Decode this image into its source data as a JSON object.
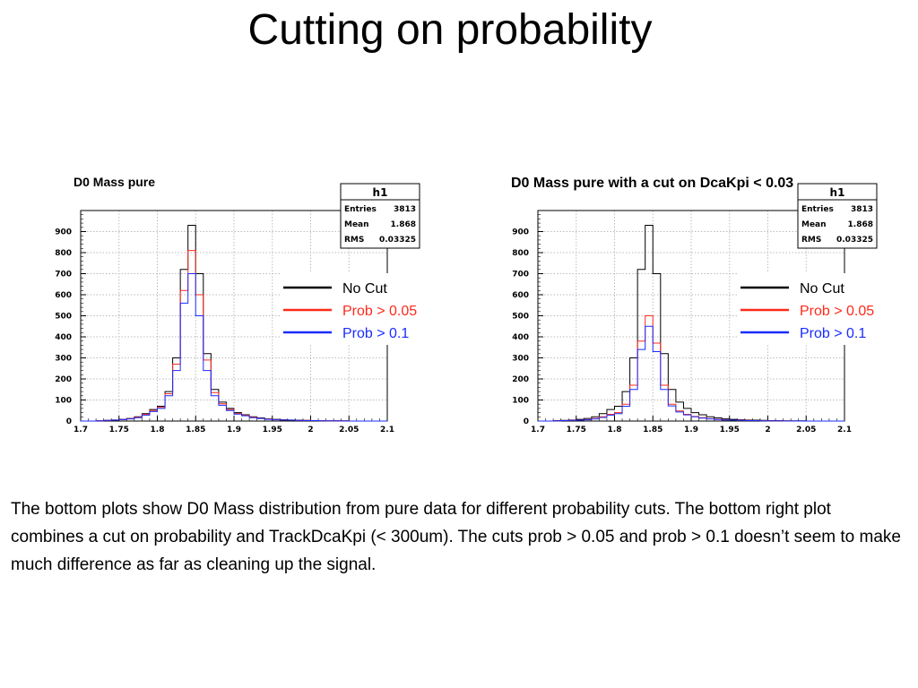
{
  "slide": {
    "title": "Cutting on probability",
    "caption": "The bottom plots show D0 Mass distribution from pure data for different probability cuts. The bottom right plot combines a cut on probability and TrackDcaKpi (< 300um). The cuts prob > 0.05 and prob > 0.1 doesn’t seem to make much difference as far as cleaning up the signal."
  },
  "colors": {
    "no_cut": "#000000",
    "prob_005": "#ff2a1a",
    "prob_01": "#1a2cff",
    "grid": "#bbbbbb"
  },
  "chart_data": [
    {
      "type": "histogram",
      "title": "D0 Mass pure",
      "xlim": [
        1.7,
        2.1
      ],
      "ylim": [
        0,
        1000
      ],
      "x_ticks": [
        "1.7",
        "1.75",
        "1.8",
        "1.85",
        "1.9",
        "1.95",
        "2",
        "2.05",
        "2.1"
      ],
      "y_ticks": [
        "0",
        "100",
        "200",
        "300",
        "400",
        "500",
        "600",
        "700",
        "800",
        "900"
      ],
      "bin_edges": [
        1.7,
        1.71,
        1.72,
        1.73,
        1.74,
        1.75,
        1.76,
        1.77,
        1.78,
        1.79,
        1.8,
        1.81,
        1.82,
        1.83,
        1.84,
        1.85,
        1.86,
        1.87,
        1.88,
        1.89,
        1.9,
        1.91,
        1.92,
        1.93,
        1.94,
        1.95,
        1.96,
        1.97,
        1.98,
        1.99,
        2.0,
        2.01,
        2.02,
        2.03,
        2.04,
        2.05,
        2.06,
        2.07,
        2.08,
        2.09,
        2.1
      ],
      "stats": {
        "name": "h1",
        "rows": [
          {
            "label": "Entries",
            "value": "3813"
          },
          {
            "label": "Mean",
            "value": "1.868"
          },
          {
            "label": "RMS",
            "value": "0.03325"
          }
        ]
      },
      "legend": [
        "No Cut",
        "Prob > 0.05",
        "Prob > 0.1"
      ],
      "series": [
        {
          "name": "No Cut",
          "values": [
            0,
            0,
            2,
            3,
            5,
            8,
            12,
            20,
            35,
            55,
            70,
            140,
            300,
            720,
            930,
            700,
            320,
            150,
            90,
            60,
            40,
            30,
            20,
            15,
            10,
            8,
            6,
            5,
            4,
            3,
            2,
            2,
            1,
            1,
            1,
            0,
            0,
            0,
            0,
            0
          ]
        },
        {
          "name": "Prob > 0.05",
          "values": [
            0,
            0,
            2,
            3,
            5,
            7,
            11,
            18,
            32,
            50,
            65,
            130,
            270,
            620,
            810,
            600,
            290,
            135,
            82,
            55,
            36,
            27,
            18,
            13,
            9,
            7,
            5,
            4,
            3,
            3,
            2,
            2,
            1,
            1,
            1,
            0,
            0,
            0,
            0,
            0
          ]
        },
        {
          "name": "Prob > 0.1",
          "values": [
            0,
            0,
            1,
            3,
            4,
            7,
            10,
            16,
            28,
            45,
            60,
            120,
            240,
            560,
            700,
            500,
            240,
            120,
            75,
            50,
            33,
            25,
            16,
            12,
            8,
            6,
            5,
            4,
            3,
            2,
            2,
            1,
            1,
            1,
            0,
            0,
            0,
            0,
            0,
            0
          ]
        }
      ]
    },
    {
      "type": "histogram",
      "title": "D0 Mass pure with a cut on DcaKpi < 0.03",
      "xlim": [
        1.7,
        2.1
      ],
      "ylim": [
        0,
        1000
      ],
      "x_ticks": [
        "1.7",
        "1.75",
        "1.8",
        "1.85",
        "1.9",
        "1.95",
        "2",
        "2.05",
        "2.1"
      ],
      "y_ticks": [
        "0",
        "100",
        "200",
        "300",
        "400",
        "500",
        "600",
        "700",
        "800",
        "900"
      ],
      "bin_edges": [
        1.7,
        1.71,
        1.72,
        1.73,
        1.74,
        1.75,
        1.76,
        1.77,
        1.78,
        1.79,
        1.8,
        1.81,
        1.82,
        1.83,
        1.84,
        1.85,
        1.86,
        1.87,
        1.88,
        1.89,
        1.9,
        1.91,
        1.92,
        1.93,
        1.94,
        1.95,
        1.96,
        1.97,
        1.98,
        1.99,
        2.0,
        2.01,
        2.02,
        2.03,
        2.04,
        2.05,
        2.06,
        2.07,
        2.08,
        2.09,
        2.1
      ],
      "stats": {
        "name": "h1",
        "rows": [
          {
            "label": "Entries",
            "value": "3813"
          },
          {
            "label": "Mean",
            "value": "1.868"
          },
          {
            "label": "RMS",
            "value": "0.03325"
          }
        ]
      },
      "legend": [
        "No Cut",
        "Prob > 0.05",
        "Prob > 0.1"
      ],
      "series": [
        {
          "name": "No Cut",
          "values": [
            0,
            0,
            2,
            3,
            5,
            8,
            12,
            20,
            35,
            55,
            70,
            140,
            300,
            720,
            930,
            700,
            320,
            150,
            90,
            60,
            40,
            30,
            20,
            15,
            10,
            8,
            6,
            5,
            4,
            3,
            2,
            2,
            1,
            1,
            1,
            0,
            0,
            0,
            0,
            0
          ]
        },
        {
          "name": "Prob > 0.05",
          "values": [
            0,
            0,
            1,
            2,
            3,
            5,
            7,
            12,
            20,
            32,
            40,
            80,
            170,
            380,
            500,
            370,
            170,
            80,
            48,
            32,
            22,
            16,
            11,
            8,
            6,
            4,
            3,
            3,
            2,
            2,
            1,
            1,
            1,
            0,
            0,
            0,
            0,
            0,
            0,
            0
          ]
        },
        {
          "name": "Prob > 0.1",
          "values": [
            0,
            0,
            1,
            2,
            3,
            4,
            6,
            10,
            17,
            28,
            35,
            70,
            150,
            340,
            450,
            330,
            150,
            72,
            43,
            29,
            20,
            14,
            10,
            7,
            5,
            4,
            3,
            2,
            2,
            1,
            1,
            1,
            0,
            0,
            0,
            0,
            0,
            0,
            0,
            0
          ]
        }
      ]
    }
  ]
}
